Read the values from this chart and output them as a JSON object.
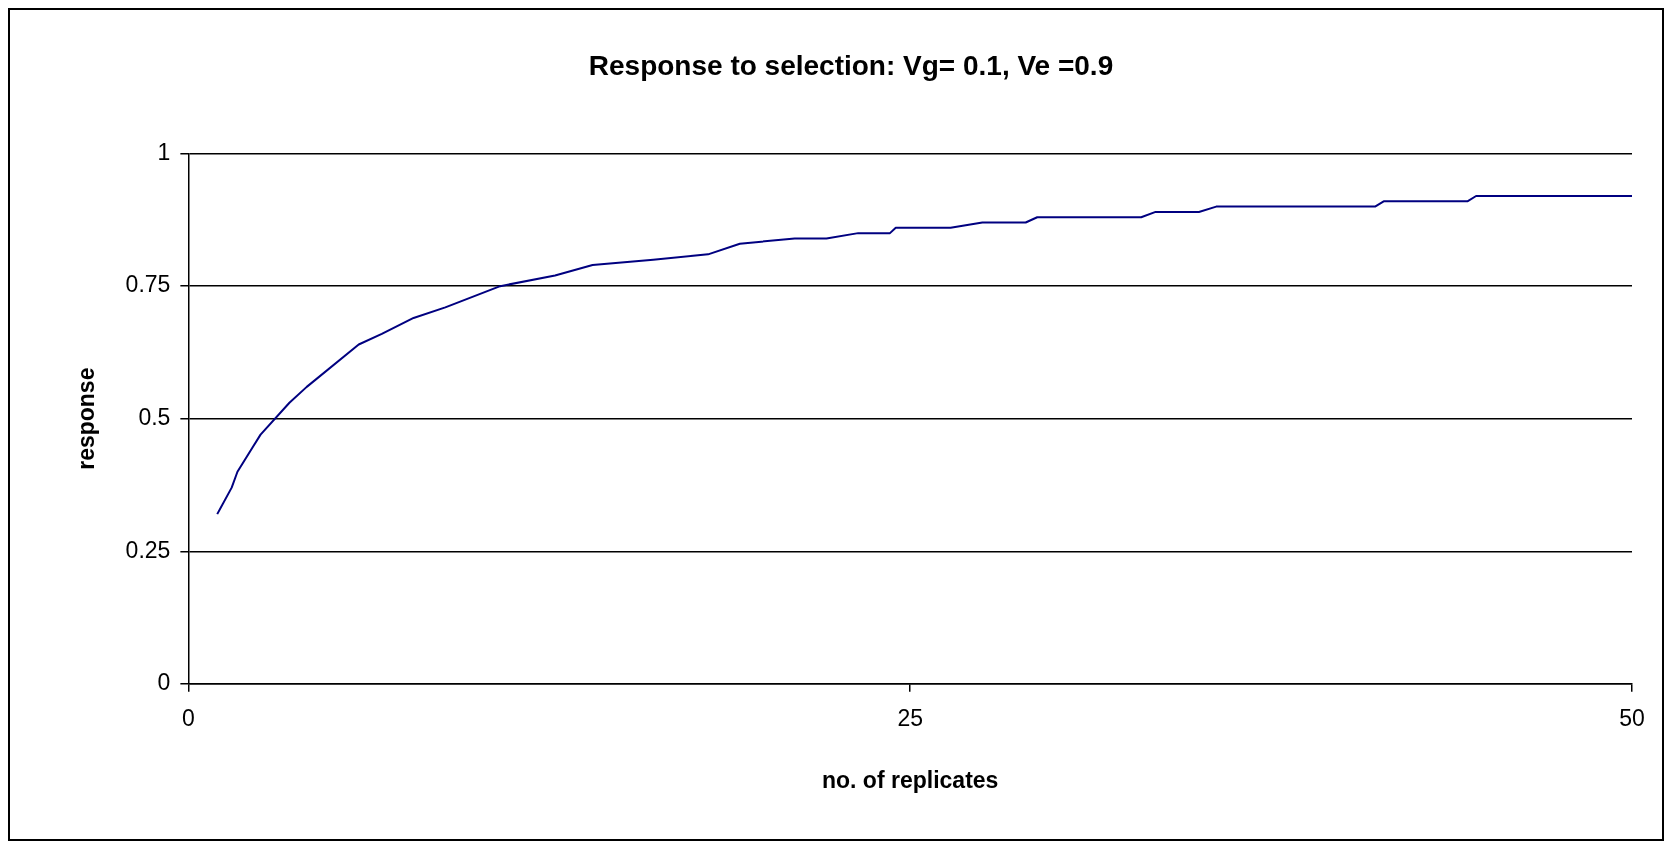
{
  "chart_data": {
    "type": "line",
    "title": "Response to selection: Vg= 0.1, Ve =0.9",
    "xlabel": "no. of replicates",
    "ylabel": "response",
    "xlim": [
      0,
      50
    ],
    "xticks": [
      0,
      25,
      50
    ],
    "ylim": [
      0,
      1
    ],
    "yticks": [
      0,
      0.25,
      0.5,
      0.75,
      1
    ],
    "grid": "y",
    "legend": false,
    "marker": "none",
    "line_style": "solid",
    "series": [
      {
        "color": "#000080",
        "x": [
          1,
          1.5,
          1.7,
          2.5,
          3.5,
          4.1,
          5.9,
          6.7,
          7.8,
          8.9,
          10.8,
          12.7,
          14,
          16.1,
          18,
          19.1,
          21,
          22.1,
          23.2,
          23.6,
          24.3,
          24.5,
          26.4,
          27.5,
          29,
          29.4,
          30.9,
          31.5,
          33,
          33.5,
          35,
          35.6,
          38.1,
          38.4,
          41.1,
          41.4,
          44.3,
          44.6,
          48.9,
          49.5,
          50
        ],
        "values": [
          0.32,
          0.37,
          0.4,
          0.47,
          0.53,
          0.56,
          0.64,
          0.66,
          0.69,
          0.71,
          0.75,
          0.77,
          0.79,
          0.8,
          0.81,
          0.83,
          0.84,
          0.84,
          0.85,
          0.85,
          0.85,
          0.86,
          0.86,
          0.87,
          0.87,
          0.88,
          0.88,
          0.88,
          0.88,
          0.89,
          0.89,
          0.9,
          0.9,
          0.9,
          0.9,
          0.91,
          0.91,
          0.92,
          0.92,
          0.92,
          0.92
        ]
      }
    ]
  }
}
